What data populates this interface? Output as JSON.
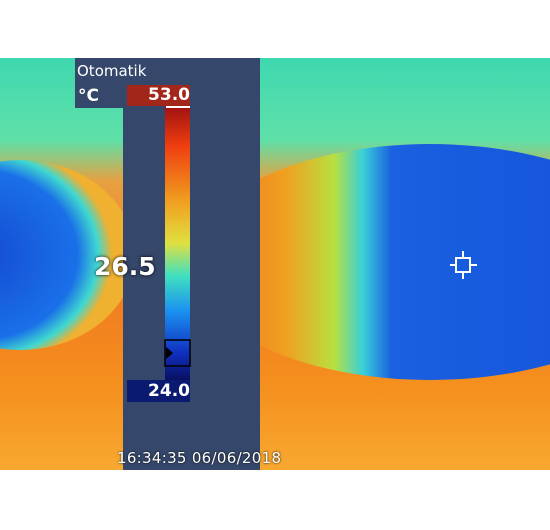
{
  "overlay": {
    "mode": "Otomatik",
    "unit": "°C",
    "timestamp": "16:34:35 06/06/2018"
  },
  "scale": {
    "max": "53.0",
    "min": "24.0",
    "current": "26.5"
  }
}
